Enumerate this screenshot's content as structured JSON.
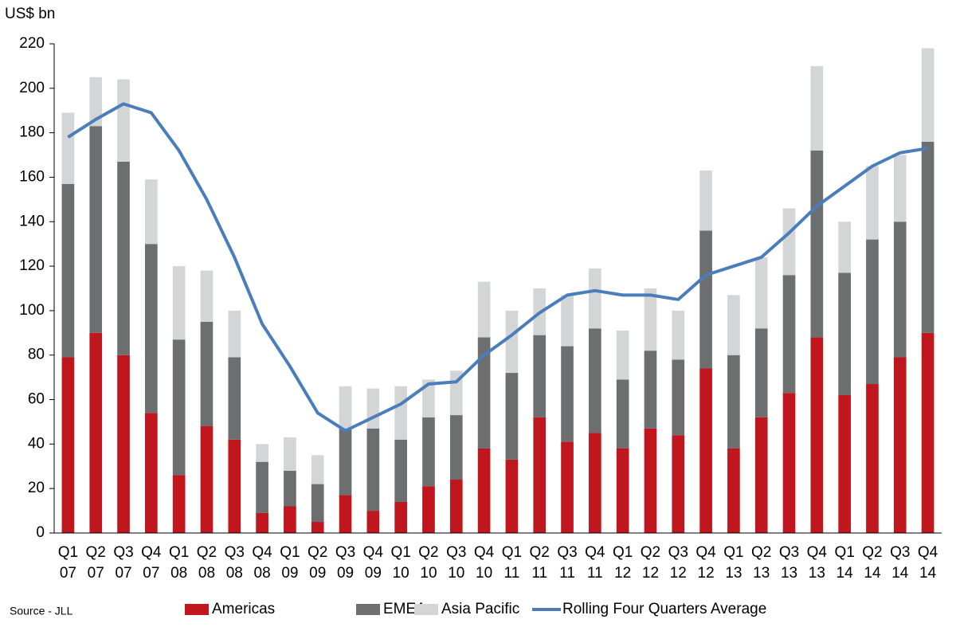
{
  "chart_data": {
    "type": "stacked-bar-line",
    "y_label": "US$ bn",
    "source": "Source - JLL",
    "categories": [
      [
        "Q1",
        "07"
      ],
      [
        "Q2",
        "07"
      ],
      [
        "Q3",
        "07"
      ],
      [
        "Q4",
        "07"
      ],
      [
        "Q1",
        "08"
      ],
      [
        "Q2",
        "08"
      ],
      [
        "Q3",
        "08"
      ],
      [
        "Q4",
        "08"
      ],
      [
        "Q1",
        "09"
      ],
      [
        "Q2",
        "09"
      ],
      [
        "Q3",
        "09"
      ],
      [
        "Q4",
        "09"
      ],
      [
        "Q1",
        "10"
      ],
      [
        "Q2",
        "10"
      ],
      [
        "Q3",
        "10"
      ],
      [
        "Q4",
        "10"
      ],
      [
        "Q1",
        "11"
      ],
      [
        "Q2",
        "11"
      ],
      [
        "Q3",
        "11"
      ],
      [
        "Q4",
        "11"
      ],
      [
        "Q1",
        "12"
      ],
      [
        "Q2",
        "12"
      ],
      [
        "Q3",
        "12"
      ],
      [
        "Q4",
        "12"
      ],
      [
        "Q1",
        "13"
      ],
      [
        "Q2",
        "13"
      ],
      [
        "Q3",
        "13"
      ],
      [
        "Q4",
        "13"
      ],
      [
        "Q1",
        "14"
      ],
      [
        "Q2",
        "14"
      ],
      [
        "Q3",
        "14"
      ],
      [
        "Q4",
        "14"
      ]
    ],
    "series": [
      {
        "name": "Americas",
        "type": "bar",
        "color": "#c0161e",
        "values": [
          79,
          90,
          80,
          54,
          26,
          48,
          42,
          9,
          12,
          5,
          17,
          10,
          14,
          21,
          24,
          38,
          33,
          52,
          41,
          45,
          38,
          47,
          44,
          74,
          38,
          52,
          63,
          88,
          62,
          67,
          79,
          90
        ]
      },
      {
        "name": "EMEA",
        "type": "bar",
        "color": "#6d6e70",
        "values": [
          78,
          93,
          87,
          76,
          61,
          47,
          37,
          23,
          16,
          17,
          30,
          37,
          28,
          31,
          29,
          50,
          39,
          37,
          43,
          47,
          31,
          35,
          34,
          62,
          42,
          40,
          53,
          84,
          55,
          65,
          61,
          86
        ]
      },
      {
        "name": "Asia Pacific",
        "type": "bar",
        "color": "#d4d5d6",
        "values": [
          32,
          22,
          37,
          29,
          33,
          23,
          21,
          8,
          15,
          13,
          19,
          18,
          24,
          17,
          20,
          25,
          28,
          21,
          23,
          27,
          22,
          28,
          22,
          27,
          27,
          32,
          30,
          38,
          23,
          33,
          30,
          42
        ]
      },
      {
        "name": "Rolling Four Quarters Average",
        "type": "line",
        "color": "#4a7ebb",
        "values": [
          178,
          186,
          193,
          189,
          172,
          150,
          124,
          94,
          75,
          54,
          46,
          52,
          58,
          67,
          68,
          80,
          89,
          99,
          107,
          109,
          107,
          107,
          105,
          116,
          120,
          124,
          135,
          147,
          156,
          165,
          171,
          173
        ]
      }
    ],
    "ylim": [
      0,
      220
    ],
    "yticks": [
      0,
      20,
      40,
      60,
      80,
      100,
      120,
      140,
      160,
      180,
      200,
      220
    ],
    "legend": "bottom"
  }
}
